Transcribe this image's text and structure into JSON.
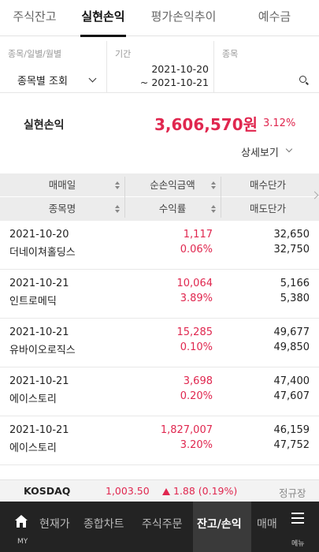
{
  "tabs": [
    {
      "label": "주식잔고",
      "active": false
    },
    {
      "label": "실현손익",
      "active": true
    },
    {
      "label": "평가손익추이",
      "active": false
    },
    {
      "label": "예수금",
      "active": false
    }
  ],
  "filters": {
    "category_label": "종목/일별/월별",
    "category_value": "종목별 조회",
    "period_label": "기간",
    "period_start": "2021-10-20",
    "period_end": "~ 2021-10-21",
    "stock_label": "종목"
  },
  "summary": {
    "label": "실현손익",
    "amount": "3,606,570원",
    "rate": "3.12%",
    "detail_link": "상세보기"
  },
  "table": {
    "headers_row1": [
      "매매일",
      "순손익금액",
      "매수단가"
    ],
    "headers_row2": [
      "종목명",
      "수익률",
      "매도단가"
    ],
    "rows": [
      {
        "date": "2021-10-20",
        "stock": "더네이쳐홀딩스",
        "pl": "1,117",
        "rate": "0.06%",
        "buy": "32,650",
        "sell": "32,750"
      },
      {
        "date": "2021-10-21",
        "stock": "인트로메딕",
        "pl": "10,064",
        "rate": "3.89%",
        "buy": "5,166",
        "sell": "5,380"
      },
      {
        "date": "2021-10-21",
        "stock": "유바이오로직스",
        "pl": "15,285",
        "rate": "0.10%",
        "buy": "49,677",
        "sell": "49,850"
      },
      {
        "date": "2021-10-21",
        "stock": "에이스토리",
        "pl": "3,698",
        "rate": "0.20%",
        "buy": "47,400",
        "sell": "47,607"
      },
      {
        "date": "2021-10-21",
        "stock": "에이스토리",
        "pl": "1,827,007",
        "rate": "3.20%",
        "buy": "46,159",
        "sell": "47,752"
      }
    ]
  },
  "ticker": {
    "name": "KOSDAQ",
    "value": "1,003.50",
    "change": "1.88 (0.19%)",
    "status": "정규장"
  },
  "bottom_nav": {
    "home_label": "MY",
    "items": [
      "현재가",
      "종합차트",
      "주식주문",
      "잔고/손익",
      "매매"
    ],
    "menu_label": "메뉴"
  },
  "colors": {
    "accent_red": "#e0274f",
    "nav_bg": "#232323"
  }
}
